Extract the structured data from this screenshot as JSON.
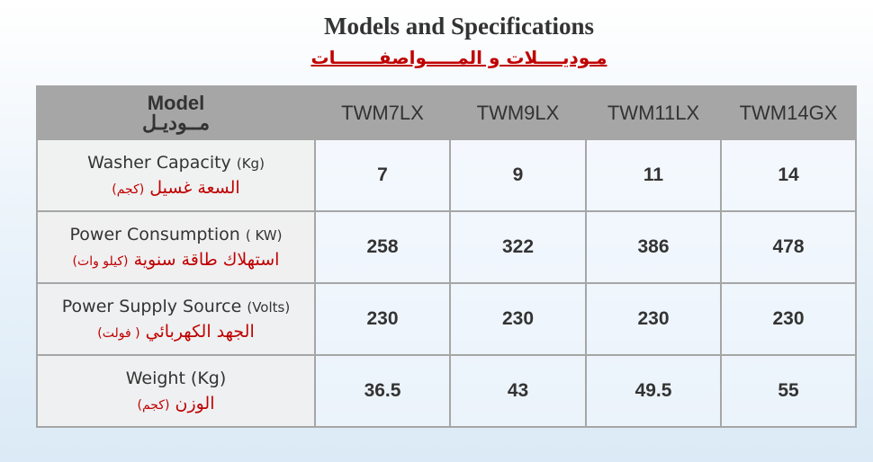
{
  "title": "Models and Specifications",
  "subtitle": "مـوديــــلات و المـــــواصفـــــــات",
  "table": {
    "header": {
      "label": "Model",
      "label_ar": "مــوديـل",
      "columns": [
        "TWM7LX",
        "TWM9LX",
        "TWM11LX",
        "TWM14GX"
      ]
    },
    "rows": [
      {
        "label": "Washer Capacity",
        "unit": "(Kg)",
        "label_ar": "السعة غسيل",
        "unit_ar": "(كجم)",
        "values": [
          7,
          9,
          11,
          14
        ]
      },
      {
        "label": "Power Consumption",
        "unit": "( KW)",
        "label_ar": "استهلاك طاقة سنوية",
        "unit_ar": "(كيلو وات)",
        "values": [
          258,
          322,
          386,
          478
        ]
      },
      {
        "label": "Power Supply Source",
        "unit": "(Volts)",
        "label_ar": "الجهد الكهربائي",
        "unit_ar": "( فولت)",
        "values": [
          230,
          230,
          230,
          230
        ]
      },
      {
        "label": "Weight (Kg)",
        "unit": null,
        "label_ar": "الوزن",
        "unit_ar": "(كجم)",
        "values": [
          36.5,
          43,
          49.5,
          55
        ]
      }
    ]
  }
}
